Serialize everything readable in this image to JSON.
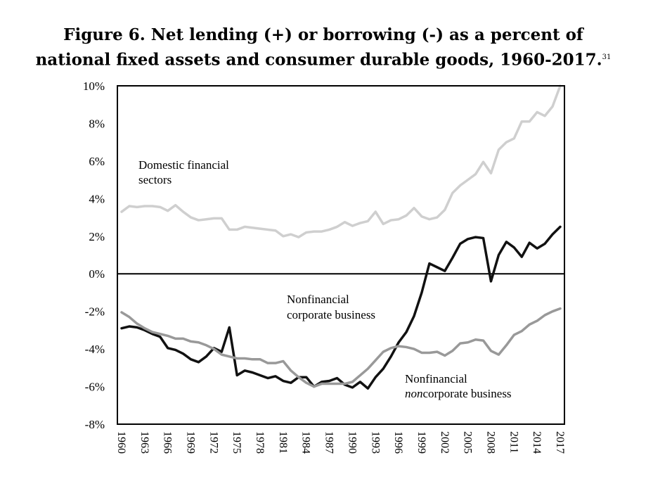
{
  "title": {
    "line1": "Figure 6. Net lending (+) or borrowing (-) as a percent of",
    "line2": "national fixed assets and consumer durable goods, 1960-2017.",
    "footnote": "31"
  },
  "chart_data": {
    "type": "line",
    "x": [
      1960,
      1961,
      1962,
      1963,
      1964,
      1965,
      1966,
      1967,
      1968,
      1969,
      1970,
      1971,
      1972,
      1973,
      1974,
      1975,
      1976,
      1977,
      1978,
      1979,
      1980,
      1981,
      1982,
      1983,
      1984,
      1985,
      1986,
      1987,
      1988,
      1989,
      1990,
      1991,
      1992,
      1993,
      1994,
      1995,
      1996,
      1997,
      1998,
      1999,
      2000,
      2001,
      2002,
      2003,
      2004,
      2005,
      2006,
      2007,
      2008,
      2009,
      2010,
      2011,
      2012,
      2013,
      2014,
      2015,
      2016,
      2017
    ],
    "ylim": [
      -8,
      10
    ],
    "yticks": [
      "10%",
      "8%",
      "6%",
      "4%",
      "2%",
      "0%",
      "-2%",
      "-4%",
      "-6%",
      "-8%"
    ],
    "ytick_values": [
      10,
      8,
      6,
      4,
      2,
      0,
      -2,
      -4,
      -6,
      -8
    ],
    "xticks": [
      "1960",
      "1963",
      "1966",
      "1969",
      "1972",
      "1975",
      "1978",
      "1981",
      "1984",
      "1987",
      "1990",
      "1993",
      "1996",
      "1999",
      "2002",
      "2005",
      "2008",
      "2011",
      "2014",
      "2017"
    ],
    "xtick_values": [
      1960,
      1963,
      1966,
      1969,
      1972,
      1975,
      1978,
      1981,
      1984,
      1987,
      1990,
      1993,
      1996,
      1999,
      2002,
      2005,
      2008,
      2011,
      2014,
      2017
    ],
    "series": [
      {
        "name": "Domestic financial sectors",
        "color": "#cfcfcf",
        "values": [
          3.3,
          3.6,
          3.55,
          3.6,
          3.6,
          3.55,
          3.35,
          3.65,
          3.3,
          3.0,
          2.85,
          2.9,
          2.95,
          2.95,
          2.35,
          2.35,
          2.5,
          2.45,
          2.4,
          2.35,
          2.3,
          2.0,
          2.1,
          1.95,
          2.2,
          2.25,
          2.25,
          2.35,
          2.5,
          2.75,
          2.55,
          2.7,
          2.8,
          3.3,
          2.65,
          2.85,
          2.9,
          3.1,
          3.5,
          3.05,
          2.9,
          3.0,
          3.4,
          4.3,
          4.7,
          5.0,
          5.3,
          5.95,
          5.35,
          6.6,
          7.0,
          7.2,
          8.1,
          8.1,
          8.6,
          8.4,
          8.9,
          10.0
        ]
      },
      {
        "name": "Nonfinancial corporate business",
        "color": "#111111",
        "values": [
          -2.9,
          -2.8,
          -2.85,
          -3.0,
          -3.2,
          -3.35,
          -3.95,
          -4.05,
          -4.25,
          -4.55,
          -4.7,
          -4.4,
          -3.95,
          -4.15,
          -2.85,
          -5.4,
          -5.15,
          -5.25,
          -5.4,
          -5.55,
          -5.45,
          -5.7,
          -5.8,
          -5.5,
          -5.5,
          -6.0,
          -5.75,
          -5.7,
          -5.55,
          -5.9,
          -6.05,
          -5.75,
          -6.1,
          -5.5,
          -5.05,
          -4.4,
          -3.65,
          -3.1,
          -2.25,
          -1.0,
          0.55,
          0.35,
          0.15,
          0.85,
          1.6,
          1.85,
          1.95,
          1.9,
          -0.4,
          1.0,
          1.7,
          1.4,
          0.9,
          1.65,
          1.35,
          1.6,
          2.1,
          2.5
        ]
      },
      {
        "name": "Nonfinancial noncorporate business",
        "color": "#999999",
        "values": [
          -2.05,
          -2.3,
          -2.65,
          -2.9,
          -3.1,
          -3.2,
          -3.3,
          -3.45,
          -3.45,
          -3.6,
          -3.65,
          -3.8,
          -4.0,
          -4.3,
          -4.4,
          -4.5,
          -4.5,
          -4.55,
          -4.55,
          -4.75,
          -4.75,
          -4.65,
          -5.15,
          -5.5,
          -5.8,
          -6.0,
          -5.85,
          -5.85,
          -5.85,
          -5.85,
          -5.75,
          -5.4,
          -5.05,
          -4.6,
          -4.15,
          -3.95,
          -3.85,
          -3.9,
          -4.0,
          -4.2,
          -4.2,
          -4.15,
          -4.35,
          -4.1,
          -3.7,
          -3.65,
          -3.5,
          -3.55,
          -4.1,
          -4.3,
          -3.8,
          -3.25,
          -3.05,
          -2.7,
          -2.5,
          -2.2,
          -2.0,
          -1.85
        ]
      }
    ],
    "annotations": {
      "financial": [
        "Domestic financial",
        "sectors"
      ],
      "corporate": [
        "Nonfinancial",
        "corporate business"
      ],
      "noncorporate_line1": "Nonfinancial",
      "noncorporate_italic": "non",
      "noncorporate_rest": "corporate business"
    },
    "grid": false,
    "legend": "none"
  }
}
